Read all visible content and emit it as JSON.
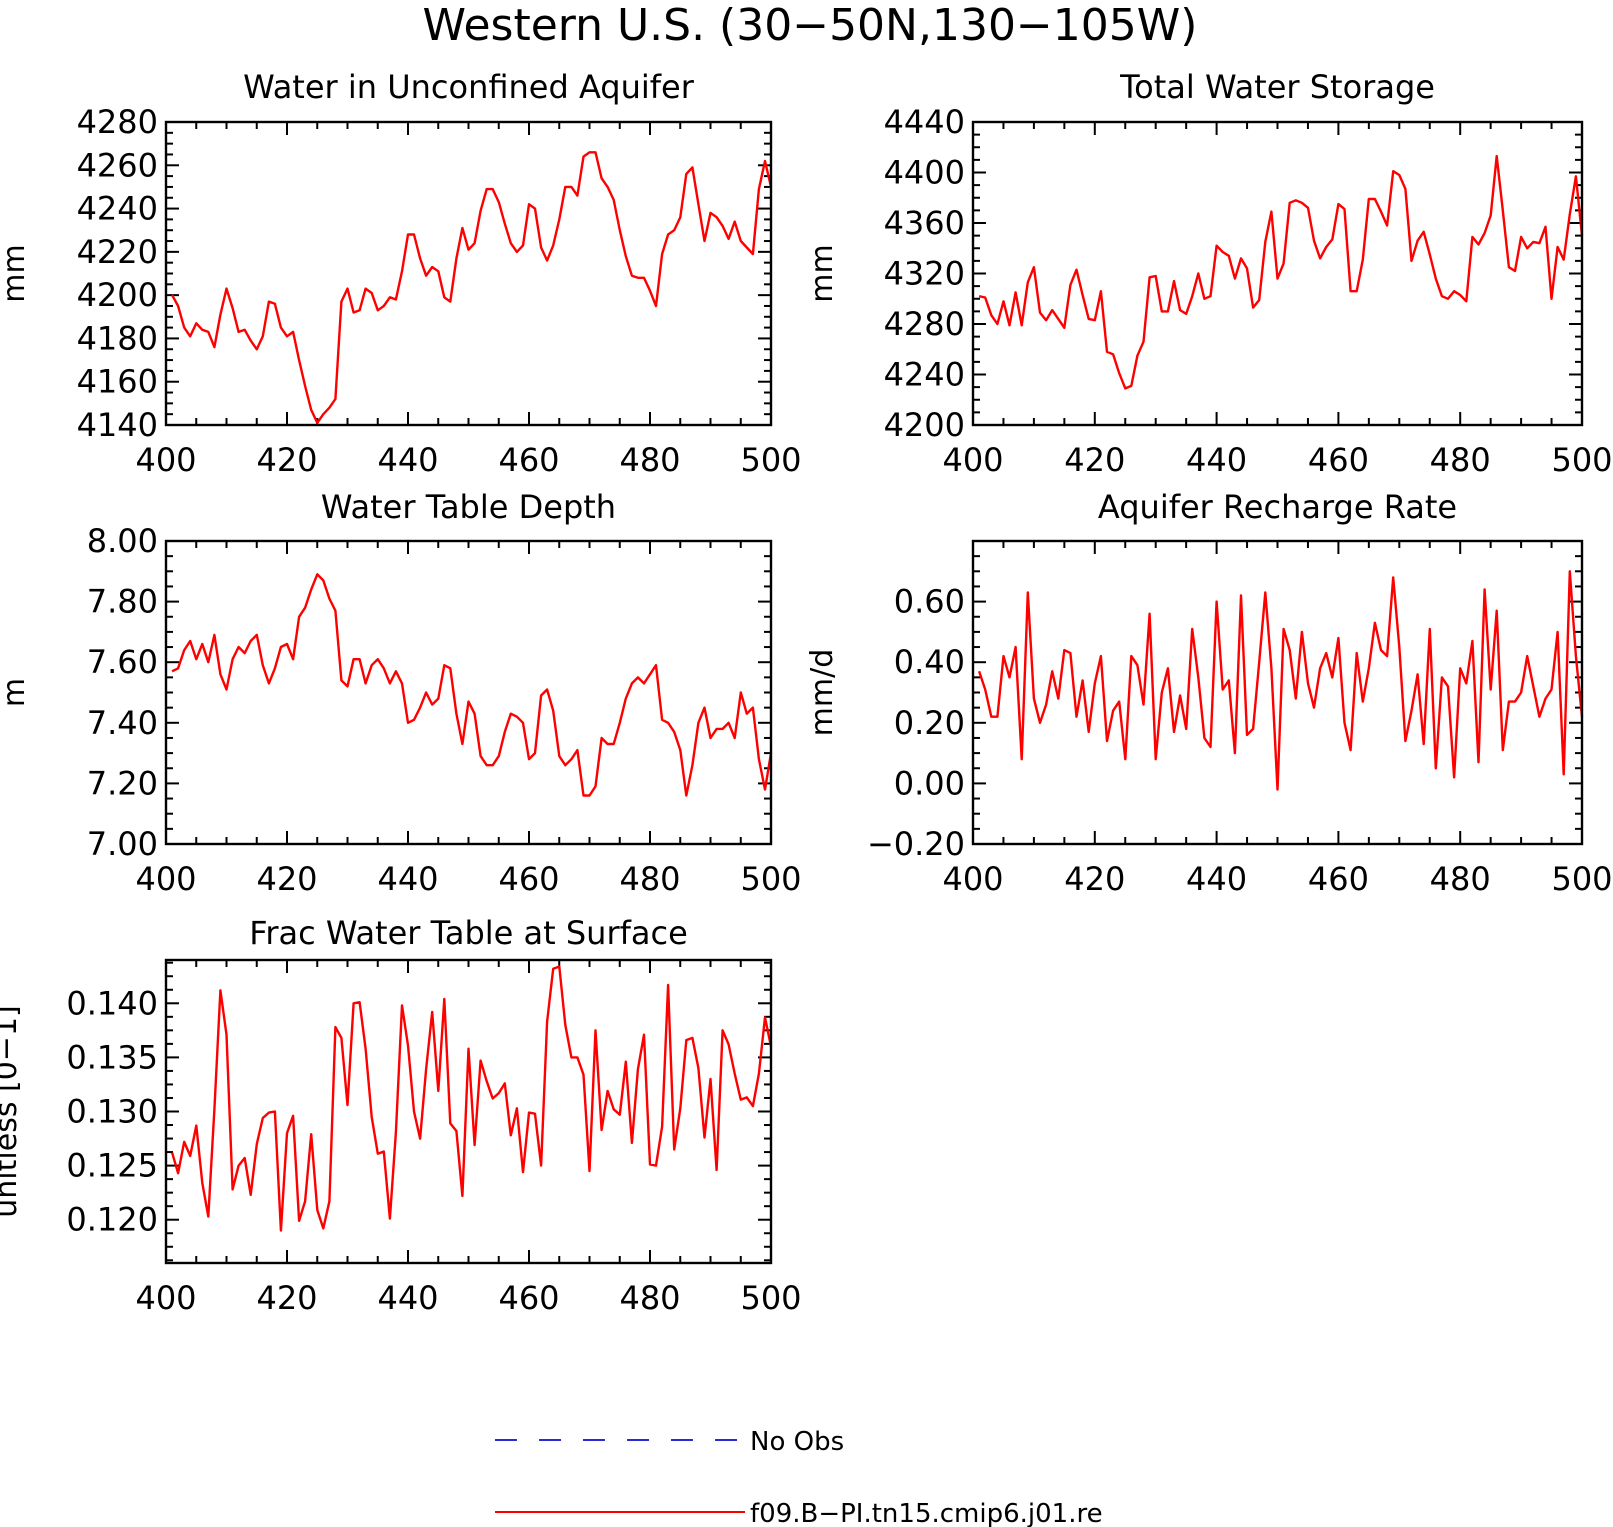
{
  "figure": {
    "title": "Western U.S. (30−50N,130−105W)"
  },
  "legend": {
    "entries": [
      {
        "label": "No Obs",
        "color": "#2b2bd6",
        "style": "dashed"
      },
      {
        "label": "f09.B−PI.tn15.cmip6.j01.re",
        "color": "#ff0000",
        "style": "solid"
      }
    ]
  },
  "chart_data": [
    {
      "type": "line",
      "title": "Water in Unconfined Aquifer",
      "xlabel": "",
      "ylabel": "mm",
      "xlim": [
        400,
        500
      ],
      "ylim": [
        4140,
        4280
      ],
      "xticks": [
        400,
        420,
        440,
        460,
        480,
        500
      ],
      "xtick_labels": [
        "400",
        "420",
        "440",
        "460",
        "480",
        "500"
      ],
      "yticks": [
        4140,
        4160,
        4180,
        4200,
        4220,
        4240,
        4260,
        4280
      ],
      "ytick_labels": [
        "4140",
        "4160",
        "4180",
        "4200",
        "4220",
        "4240",
        "4260",
        "4280"
      ],
      "grid": false,
      "series": [
        {
          "color": "#ff0000",
          "x_start": 401,
          "x_step": 1,
          "values": [
            4200,
            4195,
            4185,
            4181,
            4187,
            4184,
            4183,
            4176,
            4191,
            4203,
            4194,
            4183,
            4184,
            4179,
            4175,
            4181,
            4197,
            4196,
            4185,
            4181,
            4183,
            4170,
            4158,
            4147,
            4141,
            4145,
            4148,
            4152,
            4197,
            4203,
            4192,
            4193,
            4203,
            4201,
            4193,
            4195,
            4199,
            4198,
            4211,
            4228,
            4228,
            4217,
            4209,
            4213,
            4211,
            4199,
            4197,
            4217,
            4231,
            4221,
            4224,
            4239,
            4249,
            4249,
            4243,
            4233,
            4224,
            4220,
            4223,
            4242,
            4240,
            4222,
            4216,
            4223,
            4235,
            4250,
            4250,
            4246,
            4264,
            4266,
            4266,
            4254,
            4250,
            4244,
            4230,
            4218,
            4209,
            4208,
            4208,
            4202,
            4195,
            4219,
            4228,
            4230,
            4236,
            4256,
            4259,
            4242,
            4225,
            4238,
            4236,
            4232,
            4226,
            4234,
            4225,
            4222,
            4219,
            4249,
            4262,
            4250
          ]
        }
      ]
    },
    {
      "type": "line",
      "title": "Total Water Storage",
      "xlabel": "",
      "ylabel": "mm",
      "xlim": [
        400,
        500
      ],
      "ylim": [
        4200,
        4440
      ],
      "xticks": [
        400,
        420,
        440,
        460,
        480,
        500
      ],
      "xtick_labels": [
        "400",
        "420",
        "440",
        "460",
        "480",
        "500"
      ],
      "yticks": [
        4200,
        4240,
        4280,
        4320,
        4360,
        4400,
        4440
      ],
      "ytick_labels": [
        "4200",
        "4240",
        "4280",
        "4320",
        "4360",
        "4400",
        "4440"
      ],
      "grid": false,
      "series": [
        {
          "color": "#ff0000",
          "x_start": 401,
          "x_step": 1,
          "values": [
            4302,
            4301,
            4287,
            4280,
            4298,
            4279,
            4305,
            4279,
            4313,
            4325,
            4289,
            4283,
            4291,
            4284,
            4277,
            4311,
            4323,
            4303,
            4284,
            4283,
            4306,
            4258,
            4256,
            4241,
            4229,
            4231,
            4255,
            4266,
            4317,
            4318,
            4290,
            4290,
            4314,
            4291,
            4288,
            4302,
            4320,
            4300,
            4302,
            4342,
            4337,
            4334,
            4316,
            4332,
            4324,
            4293,
            4299,
            4345,
            4369,
            4316,
            4328,
            4376,
            4378,
            4376,
            4372,
            4346,
            4332,
            4341,
            4347,
            4375,
            4371,
            4306,
            4306,
            4331,
            4379,
            4379,
            4369,
            4358,
            4401,
            4398,
            4387,
            4330,
            4346,
            4353,
            4335,
            4316,
            4302,
            4300,
            4306,
            4303,
            4298,
            4349,
            4343,
            4352,
            4366,
            4413,
            4370,
            4325,
            4322,
            4349,
            4340,
            4345,
            4344,
            4357,
            4300,
            4341,
            4331,
            4367,
            4397,
            4350
          ]
        }
      ]
    },
    {
      "type": "line",
      "title": "Water Table Depth",
      "xlabel": "",
      "ylabel": "m",
      "xlim": [
        400,
        500
      ],
      "ylim": [
        7.0,
        8.0
      ],
      "xticks": [
        400,
        420,
        440,
        460,
        480,
        500
      ],
      "xtick_labels": [
        "400",
        "420",
        "440",
        "460",
        "480",
        "500"
      ],
      "yticks": [
        7.0,
        7.2,
        7.4,
        7.6,
        7.8,
        8.0
      ],
      "ytick_labels": [
        "7.00",
        "7.20",
        "7.40",
        "7.60",
        "7.80",
        "8.00"
      ],
      "grid": false,
      "series": [
        {
          "color": "#ff0000",
          "x_start": 401,
          "x_step": 1,
          "values": [
            7.57,
            7.58,
            7.64,
            7.67,
            7.61,
            7.66,
            7.6,
            7.69,
            7.56,
            7.51,
            7.61,
            7.65,
            7.63,
            7.67,
            7.69,
            7.59,
            7.53,
            7.58,
            7.65,
            7.66,
            7.61,
            7.75,
            7.78,
            7.84,
            7.89,
            7.87,
            7.81,
            7.77,
            7.54,
            7.52,
            7.61,
            7.61,
            7.53,
            7.59,
            7.61,
            7.58,
            7.53,
            7.57,
            7.53,
            7.4,
            7.41,
            7.45,
            7.5,
            7.46,
            7.48,
            7.59,
            7.58,
            7.43,
            7.33,
            7.47,
            7.43,
            7.29,
            7.26,
            7.26,
            7.29,
            7.37,
            7.43,
            7.42,
            7.4,
            7.28,
            7.3,
            7.49,
            7.51,
            7.44,
            7.29,
            7.26,
            7.28,
            7.31,
            7.16,
            7.16,
            7.19,
            7.35,
            7.33,
            7.33,
            7.4,
            7.48,
            7.53,
            7.55,
            7.53,
            7.56,
            7.59,
            7.41,
            7.4,
            7.37,
            7.31,
            7.16,
            7.26,
            7.4,
            7.45,
            7.35,
            7.38,
            7.38,
            7.4,
            7.35,
            7.5,
            7.43,
            7.45,
            7.28,
            7.18,
            7.3
          ]
        }
      ]
    },
    {
      "type": "line",
      "title": "Aquifer Recharge Rate",
      "xlabel": "",
      "ylabel": "mm/d",
      "xlim": [
        400,
        500
      ],
      "ylim": [
        -0.2,
        0.8
      ],
      "xticks": [
        400,
        420,
        440,
        460,
        480,
        500
      ],
      "xtick_labels": [
        "400",
        "420",
        "440",
        "460",
        "480",
        "500"
      ],
      "yticks": [
        -0.2,
        0.0,
        0.2,
        0.4,
        0.6
      ],
      "ytick_labels": [
        "−0.20",
        "0.00",
        "0.20",
        "0.40",
        "0.60"
      ],
      "grid": false,
      "series": [
        {
          "color": "#ff0000",
          "x_start": 401,
          "x_step": 1,
          "values": [
            0.37,
            0.31,
            0.22,
            0.22,
            0.42,
            0.35,
            0.45,
            0.08,
            0.63,
            0.28,
            0.2,
            0.26,
            0.37,
            0.28,
            0.44,
            0.43,
            0.22,
            0.34,
            0.17,
            0.33,
            0.42,
            0.14,
            0.24,
            0.27,
            0.08,
            0.42,
            0.39,
            0.26,
            0.56,
            0.08,
            0.3,
            0.38,
            0.17,
            0.29,
            0.18,
            0.51,
            0.35,
            0.15,
            0.12,
            0.6,
            0.31,
            0.34,
            0.1,
            0.62,
            0.16,
            0.18,
            0.4,
            0.63,
            0.38,
            -0.02,
            0.51,
            0.44,
            0.28,
            0.5,
            0.33,
            0.25,
            0.38,
            0.43,
            0.35,
            0.48,
            0.2,
            0.11,
            0.43,
            0.27,
            0.38,
            0.53,
            0.44,
            0.42,
            0.68,
            0.45,
            0.14,
            0.24,
            0.36,
            0.13,
            0.51,
            0.05,
            0.35,
            0.32,
            0.02,
            0.38,
            0.33,
            0.47,
            0.07,
            0.64,
            0.31,
            0.57,
            0.11,
            0.27,
            0.27,
            0.3,
            0.42,
            0.32,
            0.22,
            0.28,
            0.31,
            0.5,
            0.03,
            0.7,
            0.42,
            0.22
          ]
        }
      ]
    },
    {
      "type": "line",
      "title": "Frac Water Table at Surface",
      "xlabel": "",
      "ylabel": "unitless [0−1]",
      "xlim": [
        400,
        500
      ],
      "ylim": [
        0.116,
        0.144
      ],
      "xticks": [
        400,
        420,
        440,
        460,
        480,
        500
      ],
      "xtick_labels": [
        "400",
        "420",
        "440",
        "460",
        "480",
        "500"
      ],
      "yticks": [
        0.12,
        0.125,
        0.13,
        0.135,
        0.14
      ],
      "ytick_labels": [
        "0.120",
        "0.125",
        "0.130",
        "0.135",
        "0.140"
      ],
      "grid": false,
      "series": [
        {
          "color": "#ff0000",
          "x_start": 401,
          "x_step": 1,
          "values": [
            0.1262,
            0.1243,
            0.1272,
            0.1259,
            0.1287,
            0.1234,
            0.1203,
            0.1302,
            0.1412,
            0.1371,
            0.1228,
            0.125,
            0.1257,
            0.1223,
            0.127,
            0.1294,
            0.1299,
            0.13,
            0.119,
            0.128,
            0.1296,
            0.1199,
            0.1217,
            0.1279,
            0.1209,
            0.1192,
            0.1217,
            0.1378,
            0.1368,
            0.1306,
            0.14,
            0.1401,
            0.1358,
            0.1295,
            0.1261,
            0.1263,
            0.1201,
            0.1281,
            0.1398,
            0.1361,
            0.13,
            0.1275,
            0.1339,
            0.1392,
            0.1319,
            0.1404,
            0.1289,
            0.1282,
            0.1222,
            0.1358,
            0.1269,
            0.1347,
            0.1328,
            0.1312,
            0.1317,
            0.1326,
            0.1278,
            0.1303,
            0.1244,
            0.1299,
            0.1298,
            0.125,
            0.1383,
            0.1432,
            0.1434,
            0.138,
            0.135,
            0.135,
            0.1334,
            0.1245,
            0.1375,
            0.1283,
            0.1319,
            0.1302,
            0.1297,
            0.1346,
            0.1271,
            0.1339,
            0.1371,
            0.1251,
            0.125,
            0.1286,
            0.1417,
            0.1265,
            0.1303,
            0.1366,
            0.1368,
            0.134,
            0.1276,
            0.133,
            0.1246,
            0.1375,
            0.1362,
            0.1335,
            0.1311,
            0.1313,
            0.1305,
            0.1335,
            0.1387,
            0.136
          ]
        }
      ]
    }
  ]
}
